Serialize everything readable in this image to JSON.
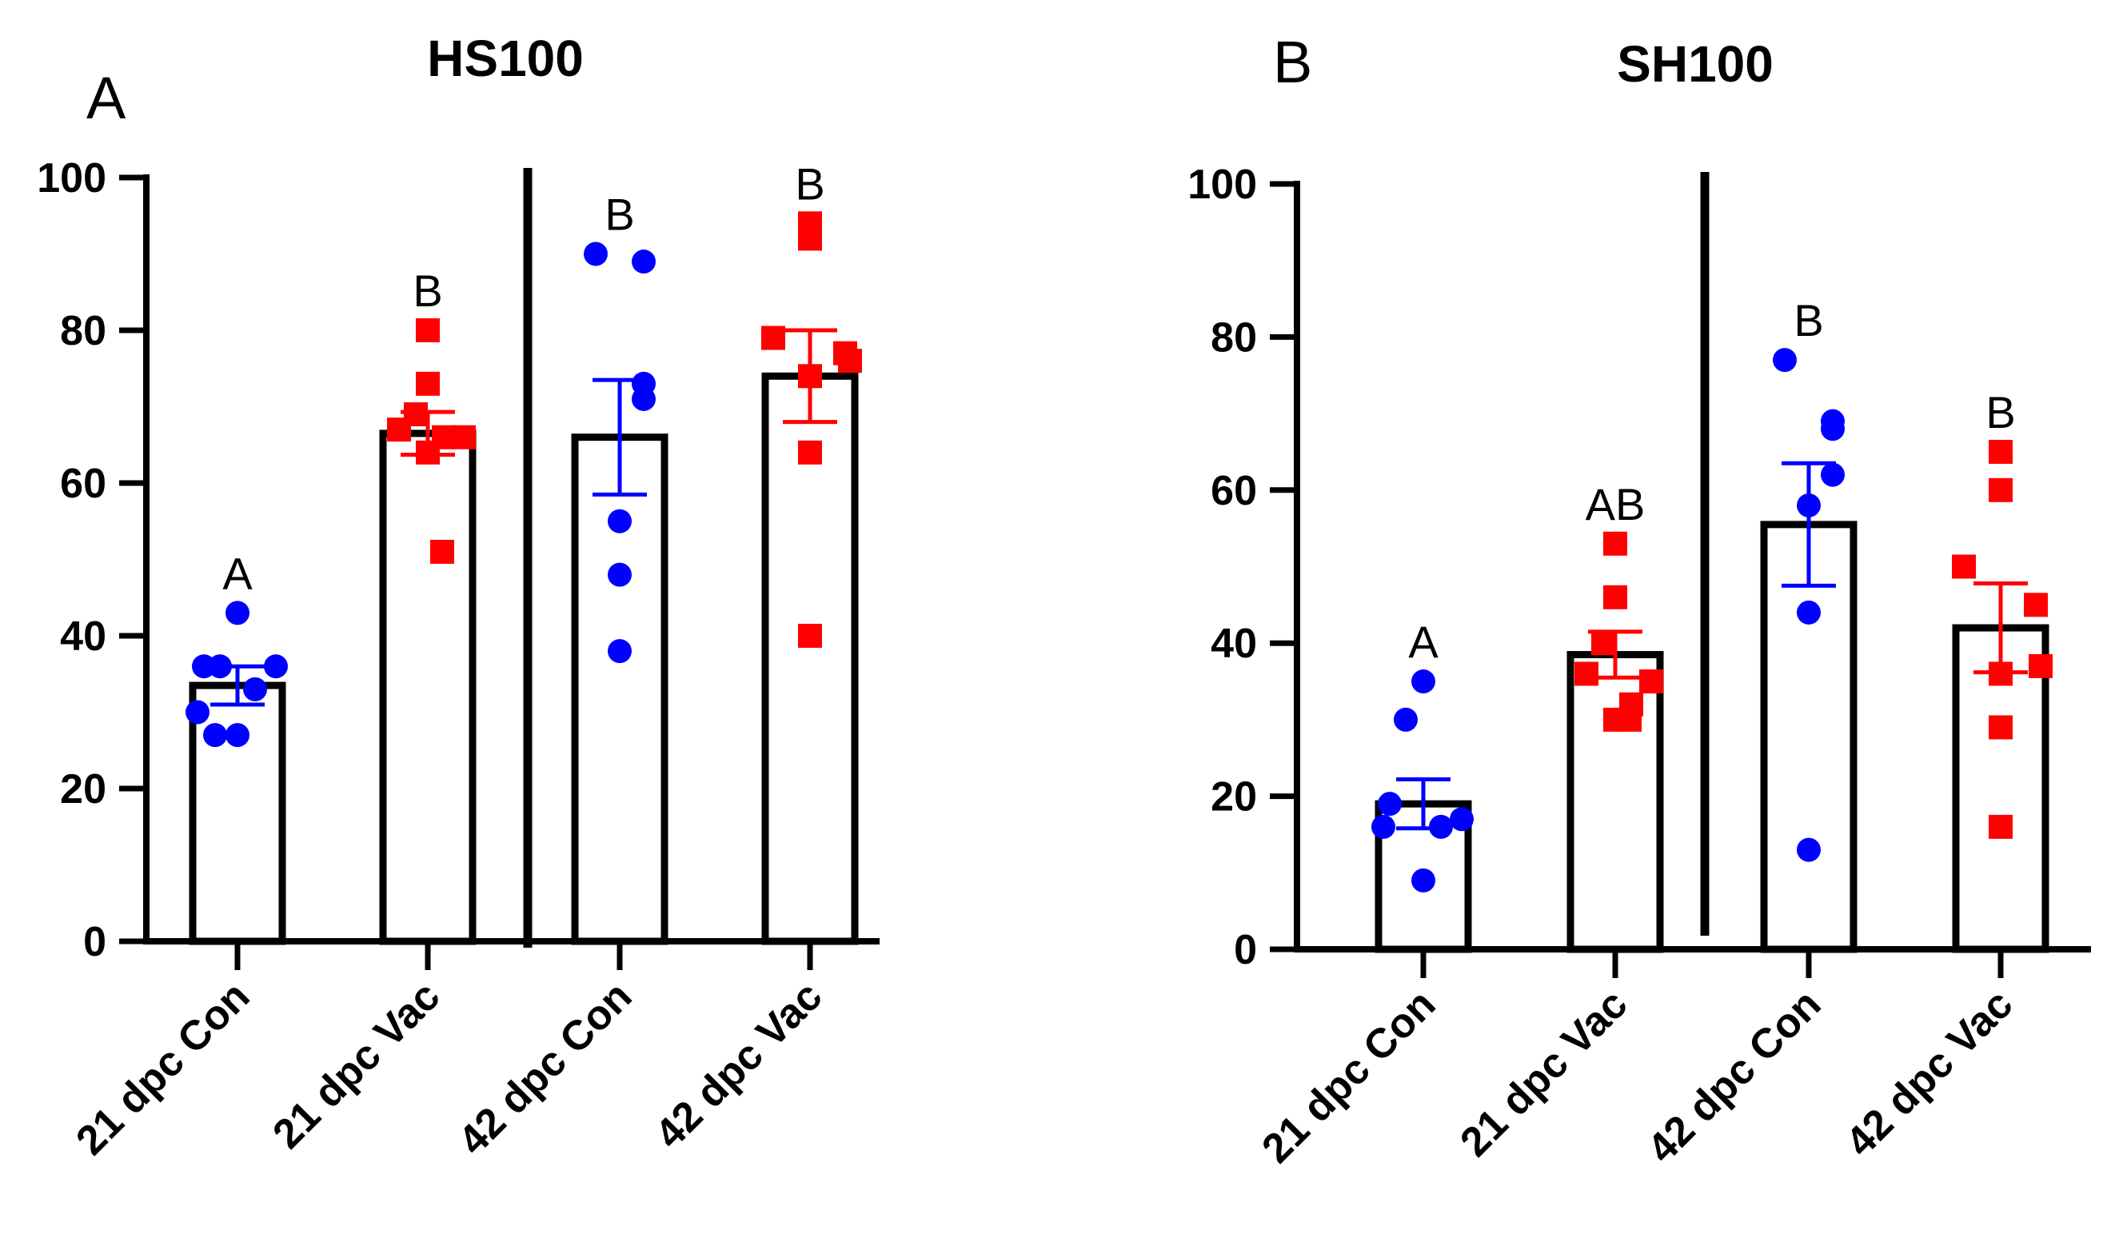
{
  "chart_data": [
    {
      "panel_label": "A",
      "type": "bar",
      "title": "HS100",
      "xlabel": "",
      "ylabel": "",
      "ylim": [
        0,
        100
      ],
      "yticks": [
        "0",
        "20",
        "40",
        "60",
        "80",
        "100"
      ],
      "categories": [
        "21 dpc Con",
        "21 dpc Vac",
        "42 dpc Con",
        "42 dpc Vac"
      ],
      "values": [
        33.5,
        66.5,
        66,
        74
      ],
      "sem": [
        2.5,
        2.8,
        7.5,
        6
      ],
      "colors": [
        "#0000ff",
        "#ff0000",
        "#0000ff",
        "#ff0000"
      ],
      "markers": [
        "circle",
        "square",
        "circle",
        "square"
      ],
      "significance": [
        "A",
        "B",
        "B",
        "B"
      ],
      "divider_after_index": 1,
      "points": [
        [
          43,
          36,
          36,
          36,
          33,
          30,
          27,
          27
        ],
        [
          80,
          73,
          69,
          67,
          66,
          66,
          64,
          51
        ],
        [
          90,
          89,
          73,
          71,
          55,
          48,
          38
        ],
        [
          94,
          92,
          79,
          77,
          76,
          74,
          64,
          40
        ]
      ]
    },
    {
      "panel_label": "B",
      "type": "bar",
      "title": "SH100",
      "xlabel": "",
      "ylabel": "",
      "ylim": [
        0,
        100
      ],
      "yticks": [
        "0",
        "20",
        "40",
        "60",
        "80",
        "100"
      ],
      "categories": [
        "21 dpc Con",
        "21 dpc Vac",
        "42 dpc Con",
        "42 dpc Vac"
      ],
      "values": [
        19,
        38.5,
        55.5,
        42
      ],
      "sem": [
        3.2,
        3,
        8,
        5.8
      ],
      "colors": [
        "#0000ff",
        "#ff0000",
        "#0000ff",
        "#ff0000"
      ],
      "markers": [
        "circle",
        "square",
        "circle",
        "square"
      ],
      "significance": [
        "A",
        "AB",
        "B",
        "B"
      ],
      "divider_after_index": 1,
      "points": [
        [
          35,
          30,
          19,
          17,
          16,
          16,
          9
        ],
        [
          53,
          46,
          40,
          36,
          35,
          32,
          30,
          30
        ],
        [
          77,
          69,
          68,
          62,
          58,
          44,
          13
        ],
        [
          65,
          60,
          50,
          45,
          37,
          36,
          29,
          16
        ]
      ]
    }
  ]
}
